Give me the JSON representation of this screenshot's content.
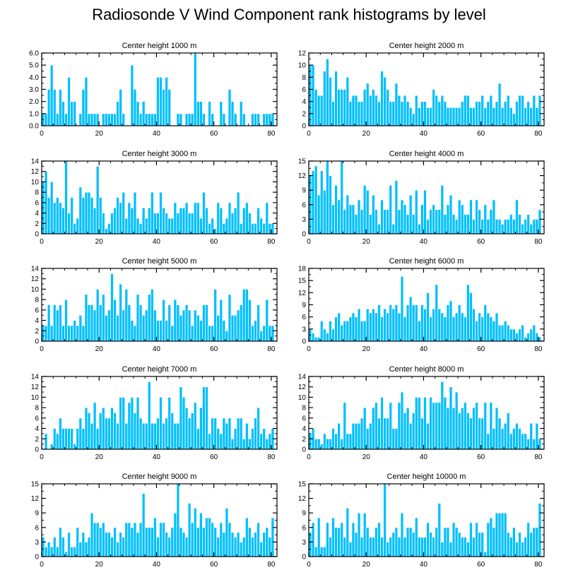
{
  "title": "Radiosonde V Wind Component rank histograms by level",
  "colors": {
    "bar": "#00BFFF",
    "bar_edge": "#ffffff",
    "axis": "#000000"
  },
  "chart_data": [
    {
      "type": "bar",
      "title": "Center height 1000 m",
      "xlim": [
        0,
        82
      ],
      "ylim": [
        0,
        6
      ],
      "xticks": [
        0,
        20,
        40,
        60,
        80
      ],
      "yticks": [
        0,
        1,
        2,
        3,
        4,
        5,
        6
      ],
      "yticklabels": [
        "0.0",
        "1.0",
        "2.0",
        "3.0",
        "4.0",
        "5.0",
        "6.0"
      ],
      "values": [
        1,
        1,
        3,
        5,
        3,
        1,
        3,
        2,
        1,
        4,
        2,
        2,
        0,
        1,
        3,
        4,
        1,
        1,
        1,
        1,
        0,
        1,
        1,
        1,
        1,
        1,
        2,
        3,
        1,
        0,
        0,
        5,
        3,
        2,
        1,
        2,
        1,
        1,
        1,
        1,
        4,
        4,
        3,
        4,
        3,
        0,
        0,
        1,
        1,
        0,
        1,
        1,
        1,
        6,
        2,
        2,
        1,
        0,
        2,
        1,
        0,
        0,
        2,
        1,
        0,
        3,
        2,
        1,
        0,
        2,
        1,
        0,
        0,
        1,
        1,
        1,
        0,
        1,
        1,
        1,
        1
      ]
    },
    {
      "type": "bar",
      "title": "Center height 2000 m",
      "xlim": [
        0,
        82
      ],
      "ylim": [
        0,
        12
      ],
      "xticks": [
        0,
        20,
        40,
        60,
        80
      ],
      "yticks": [
        0,
        2,
        4,
        6,
        8,
        10,
        12
      ],
      "values": [
        10,
        10,
        6,
        5,
        5,
        9,
        11,
        8,
        4,
        9,
        6,
        6,
        6,
        8,
        4,
        5,
        5,
        4,
        4,
        6,
        7,
        5,
        6,
        5,
        4,
        9,
        8,
        6,
        4,
        4,
        7,
        5,
        4,
        5,
        4,
        3,
        2,
        5,
        3,
        4,
        4,
        3,
        3,
        6,
        5,
        4,
        5,
        4,
        3,
        3,
        3,
        3,
        3,
        4,
        5,
        5,
        3,
        3,
        4,
        4,
        5,
        3,
        4,
        5,
        3,
        4,
        7,
        3,
        4,
        5,
        3,
        2,
        4,
        5,
        5,
        3,
        4,
        3,
        5,
        3,
        5
      ]
    },
    {
      "type": "bar",
      "title": "Center height 3000 m",
      "xlim": [
        0,
        82
      ],
      "ylim": [
        0,
        14
      ],
      "xticks": [
        0,
        20,
        40,
        60,
        80
      ],
      "yticks": [
        0,
        2,
        4,
        6,
        8,
        10,
        12,
        14
      ],
      "values": [
        10,
        12,
        7,
        10,
        6,
        7,
        6,
        5,
        14,
        4,
        7,
        2,
        3,
        9,
        7,
        8,
        8,
        7,
        5,
        13,
        7,
        4,
        1,
        2,
        4,
        5,
        7,
        6,
        8,
        3,
        6,
        5,
        8,
        3,
        2,
        5,
        3,
        5,
        8,
        4,
        4,
        8,
        5,
        4,
        3,
        3,
        6,
        4,
        5,
        5,
        6,
        4,
        4,
        6,
        6,
        3,
        8,
        5,
        2,
        3,
        1,
        6,
        5,
        2,
        3,
        6,
        4,
        5,
        8,
        2,
        5,
        6,
        4,
        2,
        2,
        5,
        3,
        2,
        6,
        2,
        2
      ]
    },
    {
      "type": "bar",
      "title": "Center height 4000 m",
      "xlim": [
        0,
        82
      ],
      "ylim": [
        0,
        15
      ],
      "xticks": [
        0,
        20,
        40,
        60,
        80
      ],
      "yticks": [
        0,
        3,
        6,
        9,
        12,
        15
      ],
      "values": [
        12,
        13,
        14,
        8,
        13,
        9,
        15,
        12,
        6,
        10,
        7,
        15,
        5,
        8,
        6,
        6,
        4,
        7,
        5,
        10,
        9,
        4,
        8,
        5,
        2,
        7,
        5,
        5,
        10,
        2,
        11,
        5,
        7,
        6,
        4,
        8,
        4,
        9,
        2,
        6,
        9,
        3,
        5,
        6,
        5,
        5,
        10,
        4,
        6,
        8,
        4,
        3,
        7,
        6,
        4,
        4,
        7,
        3,
        7,
        5,
        3,
        6,
        3,
        5,
        7,
        3,
        3,
        2,
        3,
        3,
        4,
        3,
        7,
        4,
        2,
        3,
        4,
        2,
        3,
        3,
        5
      ]
    },
    {
      "type": "bar",
      "title": "Center height 5000 m",
      "xlim": [
        0,
        82
      ],
      "ylim": [
        0,
        14
      ],
      "xticks": [
        0,
        20,
        40,
        60,
        80
      ],
      "yticks": [
        0,
        2,
        4,
        6,
        8,
        10,
        12,
        14
      ],
      "values": [
        3,
        3,
        7,
        3,
        7,
        6,
        7,
        3,
        8,
        3,
        3,
        4,
        3,
        5,
        3,
        9,
        7,
        7,
        6,
        10,
        7,
        9,
        5,
        6,
        13,
        8,
        5,
        11,
        6,
        10,
        7,
        4,
        3,
        9,
        7,
        5,
        6,
        9,
        10,
        6,
        4,
        4,
        8,
        4,
        7,
        3,
        8,
        7,
        5,
        6,
        7,
        6,
        3,
        6,
        5,
        4,
        7,
        7,
        3,
        3,
        10,
        5,
        8,
        4,
        2,
        9,
        5,
        5,
        6,
        7,
        10,
        10,
        8,
        3,
        4,
        7,
        2,
        3,
        8,
        3,
        3
      ]
    },
    {
      "type": "bar",
      "title": "Center height 6000 m",
      "xlim": [
        0,
        82
      ],
      "ylim": [
        0,
        18
      ],
      "xticks": [
        0,
        20,
        40,
        60,
        80
      ],
      "yticks": [
        0,
        3,
        6,
        9,
        12,
        15,
        18
      ],
      "values": [
        3,
        2,
        1,
        1,
        5,
        3,
        2,
        5,
        3,
        6,
        7,
        4,
        5,
        5,
        6,
        7,
        6,
        8,
        5,
        5,
        8,
        7,
        8,
        7,
        9,
        6,
        8,
        7,
        9,
        8,
        9,
        7,
        16,
        6,
        9,
        11,
        9,
        9,
        5,
        9,
        8,
        12,
        6,
        8,
        14,
        8,
        7,
        6,
        9,
        10,
        6,
        7,
        9,
        7,
        6,
        14,
        12,
        8,
        5,
        7,
        6,
        9,
        7,
        6,
        5,
        7,
        4,
        4,
        5,
        4,
        3,
        3,
        2,
        3,
        4,
        1,
        2,
        3,
        4,
        2,
        1
      ]
    },
    {
      "type": "bar",
      "title": "Center height 7000 m",
      "xlim": [
        0,
        82
      ],
      "ylim": [
        0,
        14
      ],
      "xticks": [
        0,
        20,
        40,
        60,
        80
      ],
      "yticks": [
        0,
        2,
        4,
        6,
        8,
        10,
        12,
        14
      ],
      "values": [
        0,
        3,
        0,
        1,
        4,
        3,
        6,
        4,
        4,
        4,
        4,
        1,
        4,
        6,
        4,
        8,
        7,
        5,
        9,
        4,
        7,
        8,
        6,
        6,
        8,
        7,
        5,
        10,
        10,
        5,
        9,
        10,
        7,
        10,
        6,
        5,
        5,
        13,
        5,
        5,
        6,
        10,
        5,
        6,
        10,
        7,
        5,
        5,
        12,
        10,
        8,
        6,
        7,
        9,
        4,
        8,
        12,
        12,
        3,
        6,
        6,
        4,
        3,
        6,
        5,
        6,
        2,
        4,
        6,
        6,
        2,
        5,
        2,
        4,
        6,
        8,
        3,
        4,
        2,
        3,
        4
      ]
    },
    {
      "type": "bar",
      "title": "Center height 8000 m",
      "xlim": [
        0,
        82
      ],
      "ylim": [
        0,
        14
      ],
      "xticks": [
        0,
        20,
        40,
        60,
        80
      ],
      "yticks": [
        0,
        2,
        4,
        6,
        8,
        10,
        12,
        14
      ],
      "values": [
        3,
        4,
        2,
        2,
        1,
        3,
        2,
        2,
        4,
        3,
        5,
        2,
        9,
        3,
        3,
        5,
        5,
        5,
        6,
        8,
        4,
        5,
        8,
        9,
        6,
        10,
        6,
        6,
        9,
        4,
        4,
        9,
        11,
        7,
        8,
        5,
        7,
        10,
        10,
        6,
        10,
        5,
        10,
        9,
        9,
        9,
        13,
        10,
        8,
        12,
        8,
        11,
        7,
        8,
        9,
        7,
        6,
        8,
        9,
        6,
        6,
        9,
        3,
        9,
        4,
        8,
        6,
        4,
        5,
        7,
        3,
        4,
        5,
        4,
        3,
        3,
        2,
        5,
        2,
        5,
        2
      ]
    },
    {
      "type": "bar",
      "title": "Center height 9000 m",
      "xlim": [
        0,
        82
      ],
      "ylim": [
        0,
        15
      ],
      "xticks": [
        0,
        20,
        40,
        60,
        80
      ],
      "yticks": [
        0,
        3,
        6,
        9,
        12,
        15
      ],
      "values": [
        4,
        2,
        3,
        2,
        4,
        2,
        6,
        4,
        1,
        5,
        2,
        2,
        6,
        3,
        5,
        3,
        4,
        9,
        7,
        7,
        6,
        7,
        5,
        5,
        4,
        6,
        3,
        5,
        4,
        7,
        7,
        6,
        7,
        5,
        7,
        13,
        6,
        6,
        6,
        8,
        4,
        7,
        7,
        5,
        4,
        6,
        9,
        15,
        6,
        5,
        4,
        11,
        7,
        10,
        6,
        9,
        6,
        8,
        8,
        7,
        6,
        4,
        7,
        5,
        10,
        7,
        5,
        4,
        5,
        3,
        4,
        8,
        6,
        4,
        5,
        7,
        3,
        5,
        6,
        4,
        8
      ]
    },
    {
      "type": "bar",
      "title": "Center height 10000 m",
      "xlim": [
        0,
        82
      ],
      "ylim": [
        0,
        15
      ],
      "xticks": [
        0,
        20,
        40,
        60,
        80
      ],
      "yticks": [
        0,
        3,
        6,
        9,
        12,
        15
      ],
      "values": [
        5,
        7,
        2,
        8,
        2,
        2,
        7,
        4,
        8,
        6,
        6,
        7,
        4,
        10,
        3,
        7,
        5,
        9,
        4,
        9,
        6,
        4,
        4,
        6,
        7,
        4,
        15,
        3,
        4,
        5,
        6,
        4,
        9,
        4,
        6,
        6,
        5,
        8,
        4,
        4,
        4,
        7,
        5,
        4,
        6,
        11,
        3,
        6,
        6,
        3,
        7,
        6,
        5,
        4,
        4,
        3,
        7,
        4,
        7,
        5,
        5,
        1,
        7,
        8,
        6,
        9,
        9,
        9,
        9,
        5,
        4,
        6,
        3,
        5,
        3,
        4,
        7,
        5,
        6,
        6,
        11
      ]
    }
  ]
}
